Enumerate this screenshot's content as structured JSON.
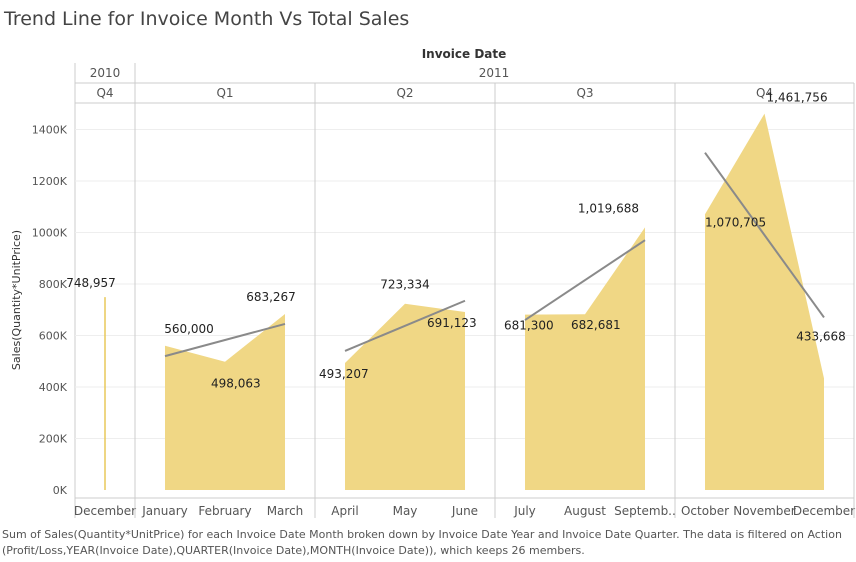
{
  "title": "Trend Line for Invoice Month Vs Total Sales",
  "footer": "Sum of Sales(Quantity*UnitPrice) for each Invoice Date Month broken down by Invoice Date Year and Invoice Date Quarter. The data is filtered on Action (Profit/Loss,YEAR(Invoice Date),QUARTER(Invoice Date),MONTH(Invoice Date)), which keeps 26 members.",
  "colors": {
    "area": "#f0d785",
    "trend": "#8a8a8a",
    "grid": "#dddddd",
    "divider": "#cccccc"
  },
  "chart_data": {
    "type": "area",
    "column_header": "Invoice Date",
    "ylabel": "Sales(Quantity*UnitPrice)",
    "ylim": [
      0,
      1500000
    ],
    "yticks": [
      0,
      200000,
      400000,
      600000,
      800000,
      1000000,
      1200000,
      1400000
    ],
    "ytick_labels": [
      "0K",
      "200K",
      "400K",
      "600K",
      "800K",
      "1000K",
      "1200K",
      "1400K"
    ],
    "panes": [
      {
        "year": "2010",
        "quarter": "Q4",
        "months": [
          "December"
        ],
        "values": [
          748957
        ],
        "labels": [
          "748,957"
        ],
        "trend": null
      },
      {
        "year": "2011",
        "quarter": "Q1",
        "months": [
          "January",
          "February",
          "March"
        ],
        "values": [
          560000,
          498063,
          683267
        ],
        "labels": [
          "560,000",
          "498,063",
          "683,267"
        ],
        "trend": [
          520000,
          645000
        ]
      },
      {
        "year": "",
        "quarter": "Q2",
        "months": [
          "April",
          "May",
          "June"
        ],
        "values": [
          493207,
          723334,
          691123
        ],
        "labels": [
          "493,207",
          "723,334",
          "691,123"
        ],
        "trend": [
          540000,
          735000
        ]
      },
      {
        "year": "",
        "quarter": "Q3",
        "months": [
          "July",
          "August",
          "Septemb.."
        ],
        "values": [
          681300,
          682681,
          1019688
        ],
        "labels": [
          "681,300",
          "682,681",
          "1,019,688"
        ],
        "trend": [
          660000,
          970000
        ]
      },
      {
        "year": "",
        "quarter": "Q4",
        "months": [
          "October",
          "November",
          "December"
        ],
        "values": [
          1070705,
          1461756,
          433668
        ],
        "labels": [
          "1,070,705",
          "1,461,756",
          "433,668"
        ],
        "trend": [
          1310000,
          670000
        ]
      }
    ]
  }
}
